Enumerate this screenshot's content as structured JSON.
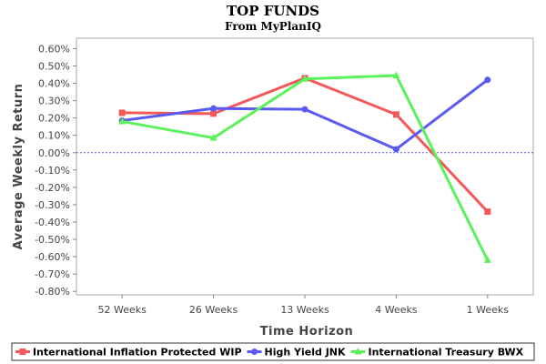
{
  "chart_data": {
    "type": "line",
    "title": "TOP FUNDS",
    "subtitle": "From MyPlanIQ",
    "xlabel": "Time Horizon",
    "ylabel": "Average Weekly Return",
    "categories": [
      "52 Weeks",
      "26 Weeks",
      "13 Weeks",
      "4 Weeks",
      "1 Weeks"
    ],
    "ylim": [
      -0.0082,
      0.0066
    ],
    "yticks": [
      {
        "value": 0.006,
        "label": "0.60%"
      },
      {
        "value": 0.005,
        "label": "0.50%"
      },
      {
        "value": 0.004,
        "label": "0.40%"
      },
      {
        "value": 0.003,
        "label": "0.30%"
      },
      {
        "value": 0.002,
        "label": "0.20%"
      },
      {
        "value": 0.001,
        "label": "0.10%"
      },
      {
        "value": 0.0,
        "label": "0.00%"
      },
      {
        "value": -0.001,
        "label": "-0.10%"
      },
      {
        "value": -0.002,
        "label": "-0.20%"
      },
      {
        "value": -0.003,
        "label": "-0.30%"
      },
      {
        "value": -0.004,
        "label": "-0.40%"
      },
      {
        "value": -0.005,
        "label": "-0.50%"
      },
      {
        "value": -0.006,
        "label": "-0.60%"
      },
      {
        "value": -0.007,
        "label": "-0.70%"
      },
      {
        "value": -0.008,
        "label": "-0.80%"
      }
    ],
    "grid": false,
    "zero_line": true,
    "legend_position": "bottom",
    "series": [
      {
        "name": "International Inflation Protected  WIP",
        "color": "#f25a5a",
        "marker": "square",
        "values": [
          0.0023,
          0.00225,
          0.0043,
          0.0022,
          -0.0034
        ]
      },
      {
        "name": "High Yield  JNK",
        "color": "#5a5af2",
        "marker": "circle",
        "values": [
          0.00185,
          0.00255,
          0.0025,
          0.0002,
          0.0042
        ]
      },
      {
        "name": "International Treasury  BWX",
        "color": "#5af25a",
        "marker": "triangle",
        "values": [
          0.0018,
          0.00085,
          0.00425,
          0.00445,
          -0.0062
        ]
      }
    ]
  }
}
